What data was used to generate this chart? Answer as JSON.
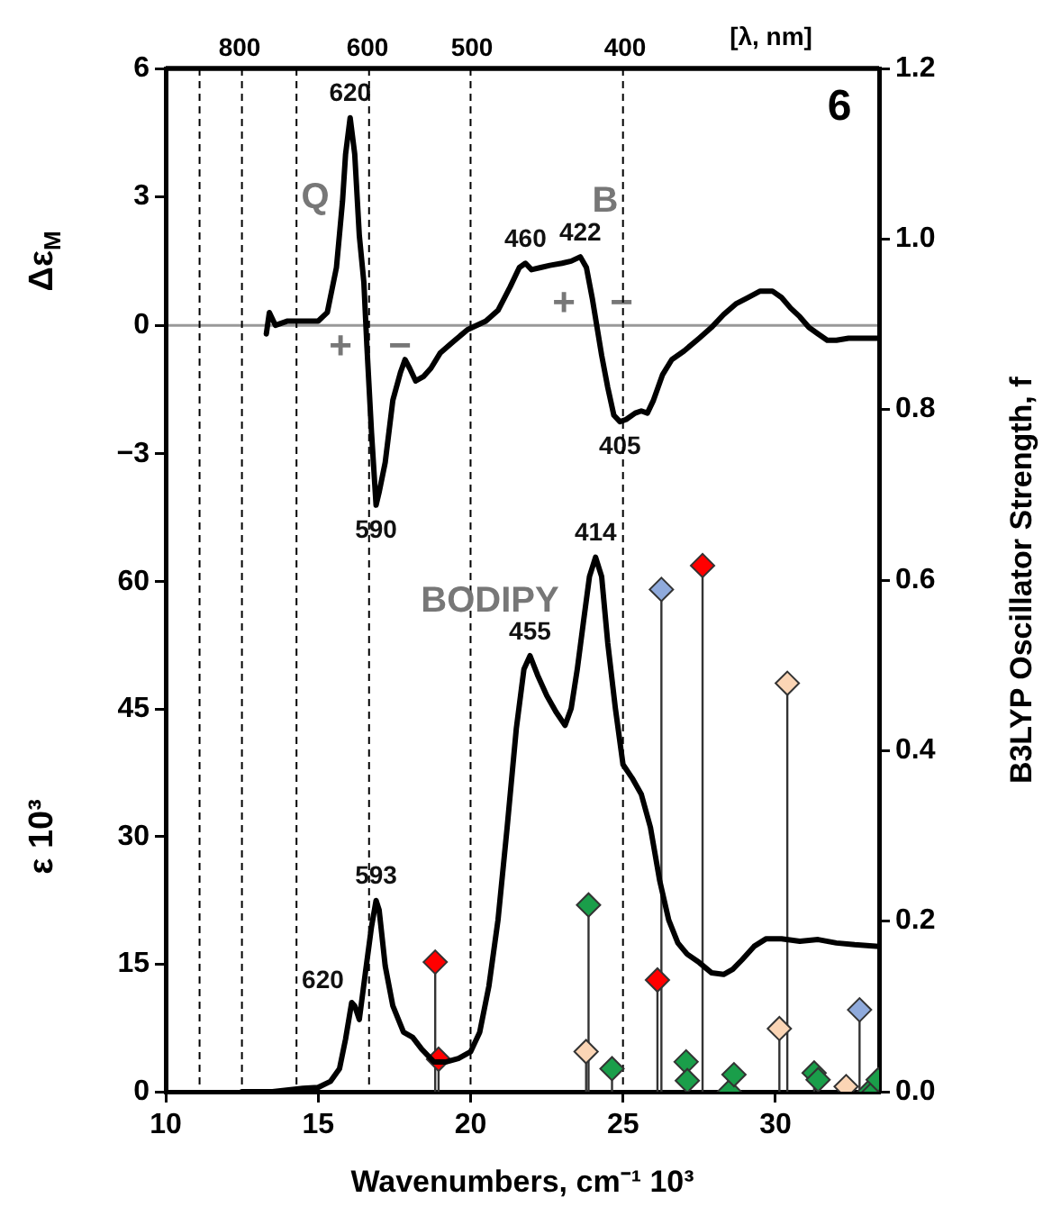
{
  "chart_data": [
    {
      "type": "line",
      "xlim": [
        10,
        33.4
      ],
      "ylim": [
        -17.9,
        6
      ],
      "yticks": [
        {
          "value": -3,
          "label": "−3"
        },
        0,
        3,
        6
      ],
      "ylabel": "Δε$_{M}$",
      "tick_labels": "y",
      "ref_lines": [
        {
          "axis": "y",
          "value": 0,
          "color": "#999999"
        }
      ],
      "annotations": [
        {
          "text": "620",
          "x": 16.05,
          "y": 4.85
        },
        {
          "text": "590",
          "x": 16.9,
          "y": -4.2
        },
        {
          "text": "460",
          "x": 21.8,
          "y": 1.45
        },
        {
          "text": "422",
          "x": 23.6,
          "y": 1.6
        },
        {
          "text": "405",
          "x": 24.9,
          "y": -2.25
        },
        "Q",
        "B",
        "+",
        "−",
        "+",
        "−",
        "6"
      ],
      "series": [
        {
          "color": "#000000",
          "x": [
            13.3,
            13.4,
            13.6,
            14.0,
            14.5,
            15.0,
            15.3,
            15.6,
            15.8,
            15.9,
            16.05,
            16.2,
            16.35,
            16.5,
            16.6,
            16.75,
            16.9,
            17.0,
            17.2,
            17.45,
            17.7,
            17.85,
            18.0,
            18.2,
            18.45,
            18.7,
            19.0,
            19.4,
            19.9,
            20.2,
            20.5,
            20.9,
            21.3,
            21.6,
            21.8,
            22.0,
            22.3,
            22.6,
            23.0,
            23.3,
            23.6,
            23.8,
            24.0,
            24.3,
            24.5,
            24.7,
            24.9,
            25.1,
            25.4,
            25.6,
            25.8,
            26.0,
            26.3,
            26.6,
            27.0,
            27.5,
            27.9,
            28.3,
            28.7,
            29.1,
            29.5,
            29.9,
            30.2,
            30.5,
            30.8,
            31.1,
            31.4,
            31.7,
            32.0,
            32.4,
            32.8,
            33.4
          ],
          "values": [
            -0.2,
            0.3,
            0.0,
            0.1,
            0.1,
            0.1,
            0.3,
            1.35,
            2.9,
            4.0,
            4.85,
            4.0,
            2.1,
            1.0,
            -0.5,
            -2.5,
            -4.2,
            -3.9,
            -3.2,
            -1.75,
            -1.1,
            -0.8,
            -1.0,
            -1.3,
            -1.2,
            -1.0,
            -0.65,
            -0.4,
            -0.1,
            0,
            0.1,
            0.35,
            0.9,
            1.35,
            1.45,
            1.3,
            1.35,
            1.4,
            1.45,
            1.5,
            1.6,
            1.35,
            0.6,
            -0.7,
            -1.45,
            -2.1,
            -2.25,
            -2.2,
            -2.05,
            -2.0,
            -2.05,
            -1.75,
            -1.15,
            -0.8,
            -0.6,
            -0.3,
            -0.05,
            0.25,
            0.5,
            0.65,
            0.8,
            0.8,
            0.65,
            0.4,
            0.2,
            -0.05,
            -0.2,
            -0.35,
            -0.35,
            -0.3,
            -0.3,
            -0.3
          ]
        }
      ]
    },
    {
      "type": "line",
      "xlabel": "Wavenumbers, cm⁻¹ 10³",
      "ylabel": "ε 10³",
      "y2label": "B3LYP Oscillator Strength, f",
      "xlim": [
        10,
        33.4
      ],
      "xticks": [
        10,
        15,
        20,
        25,
        30
      ],
      "ylim": [
        0,
        120.4
      ],
      "yticks": [
        0,
        15,
        30,
        45,
        60
      ],
      "y2lim": [
        0,
        1.2
      ],
      "y2ticks": [
        {
          "value": 0,
          "label": "0.0"
        },
        0.2,
        0.4,
        0.6,
        0.8,
        {
          "value": 1,
          "label": "1.0"
        },
        {
          "value": 1.2,
          "label": "1.2"
        }
      ],
      "ref_lines": [
        {
          "axis": "x",
          "value": 11.11,
          "line_style": "dashed",
          "color": "#000000"
        },
        {
          "axis": "x",
          "value": 12.5,
          "line_style": "dashed",
          "color": "#000000"
        },
        {
          "axis": "x",
          "value": 14.29,
          "line_style": "dashed",
          "color": "#000000"
        },
        {
          "axis": "x",
          "value": 16.67,
          "line_style": "dashed",
          "color": "#000000"
        },
        {
          "axis": "x",
          "value": 20,
          "line_style": "dashed",
          "color": "#000000"
        },
        {
          "axis": "x",
          "value": 25,
          "line_style": "dashed",
          "color": "#000000"
        }
      ],
      "annotations": [
        {
          "text": "620",
          "x": 16.1,
          "y": 10.5
        },
        {
          "text": "593",
          "x": 16.9,
          "y": 22.5
        },
        {
          "text": "455",
          "x": 21.95,
          "y": 51.3
        },
        {
          "text": "414",
          "x": 24.1,
          "y": 62.9
        },
        "BODIPY",
        "800",
        "600",
        "500",
        "400",
        "[λ, nm]"
      ],
      "series": [
        {
          "color": "#000000",
          "x": [
            12.5,
            13.5,
            14.5,
            15.0,
            15.4,
            15.7,
            15.9,
            16.1,
            16.2,
            16.35,
            16.55,
            16.75,
            16.9,
            17.0,
            17.2,
            17.45,
            17.8,
            18.1,
            18.4,
            18.8,
            19.2,
            19.6,
            20.0,
            20.3,
            20.6,
            20.9,
            21.2,
            21.5,
            21.75,
            21.95,
            22.2,
            22.5,
            22.8,
            23.1,
            23.3,
            23.5,
            23.7,
            23.9,
            24.1,
            24.3,
            24.5,
            24.75,
            25.0,
            25.3,
            25.6,
            25.9,
            26.2,
            26.5,
            26.8,
            27.1,
            27.5,
            27.9,
            28.3,
            28.6,
            28.9,
            29.3,
            29.7,
            30.2,
            30.8,
            31.4,
            32.0,
            32.6,
            33.4
          ],
          "values": [
            0,
            0,
            0.4,
            0.5,
            1.2,
            2.7,
            6.2,
            10.5,
            10.1,
            8.5,
            14,
            19.4,
            22.5,
            21.4,
            14.8,
            10.1,
            7.0,
            6.4,
            5.0,
            3.5,
            3.5,
            3.9,
            4.7,
            7.0,
            12.4,
            20.2,
            31.1,
            42.7,
            49.7,
            51.3,
            49.0,
            46.6,
            44.7,
            43.1,
            45.1,
            49.7,
            55.2,
            60.6,
            62.9,
            60.6,
            52.8,
            45.1,
            38.5,
            36.9,
            35.0,
            31.1,
            24.9,
            20.2,
            17.5,
            16.2,
            15.2,
            14.0,
            13.8,
            14.4,
            15.5,
            17.1,
            18.0,
            18.0,
            17.7,
            17.9,
            17.5,
            17.3,
            17.1
          ]
        },
        {
          "type": "lollipop",
          "axis": "y2",
          "marker": "diamond",
          "color": "#ff0000",
          "x": [
            18.84,
            18.95,
            26.13,
            27.61
          ],
          "values": [
            0.152,
            0.038,
            0.131,
            0.617
          ]
        },
        {
          "type": "lollipop",
          "axis": "y2",
          "marker": "diamond",
          "color": "#8faadc",
          "x": [
            26.26,
            32.76
          ],
          "values": [
            0.589,
            0.096
          ]
        },
        {
          "type": "lollipop",
          "axis": "y2",
          "marker": "diamond",
          "color": "#fbd5b5",
          "x": [
            23.79,
            30.13,
            30.39,
            32.32
          ],
          "values": [
            0.047,
            0.074,
            0.479,
            0.006
          ]
        },
        {
          "type": "lollipop",
          "axis": "y2",
          "marker": "diamond",
          "color": "#1a9e4a",
          "x": [
            23.87,
            24.64,
            27.07,
            27.11,
            28.49,
            28.64,
            31.27,
            31.4,
            33.08,
            33.24,
            33.37
          ],
          "values": [
            0.219,
            0.027,
            0.035,
            0.013,
            0,
            0.02,
            0.022,
            0.014,
            0,
            0,
            0.014
          ]
        }
      ]
    }
  ]
}
